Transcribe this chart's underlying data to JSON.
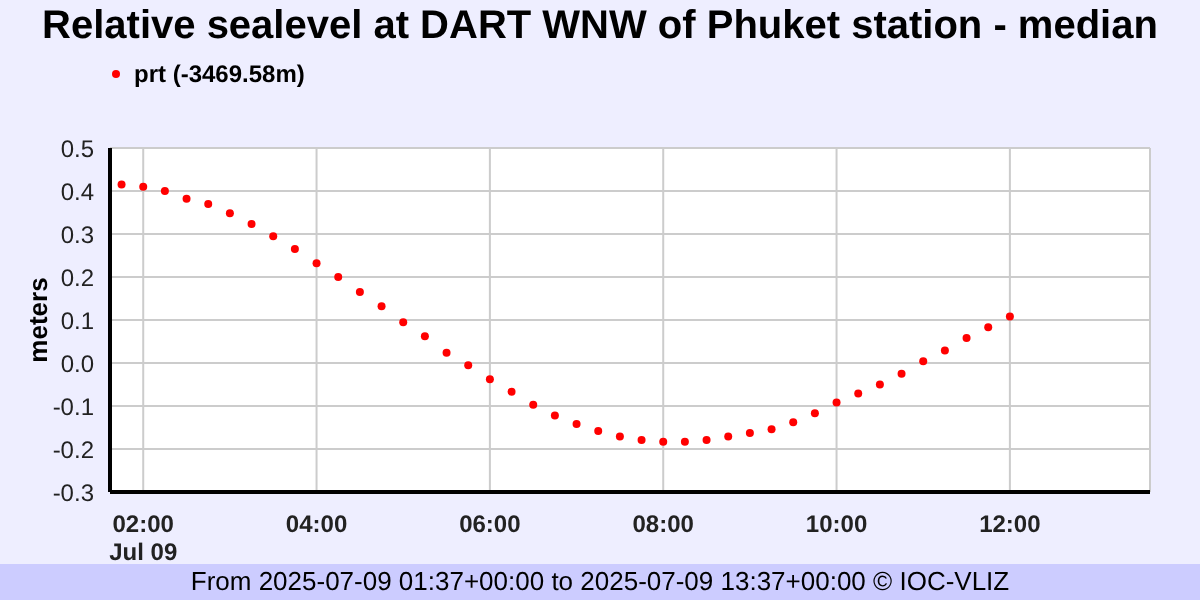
{
  "chart_data": {
    "type": "scatter",
    "title": "Relative sealevel at DART WNW of Phuket station - median",
    "ylabel": "meters",
    "annotations": [
      "From 2025-07-09 01:37+00:00 to 2025-07-09 13:37+00:00 © IOC-VLIZ"
    ],
    "x": [
      "2025-07-09T01:45",
      "2025-07-09T02:00",
      "2025-07-09T02:15",
      "2025-07-09T02:30",
      "2025-07-09T02:45",
      "2025-07-09T03:00",
      "2025-07-09T03:15",
      "2025-07-09T03:30",
      "2025-07-09T03:45",
      "2025-07-09T04:00",
      "2025-07-09T04:15",
      "2025-07-09T04:30",
      "2025-07-09T04:45",
      "2025-07-09T05:00",
      "2025-07-09T05:15",
      "2025-07-09T05:30",
      "2025-07-09T05:45",
      "2025-07-09T06:00",
      "2025-07-09T06:15",
      "2025-07-09T06:30",
      "2025-07-09T06:45",
      "2025-07-09T07:00",
      "2025-07-09T07:15",
      "2025-07-09T07:30",
      "2025-07-09T07:45",
      "2025-07-09T08:00",
      "2025-07-09T08:15",
      "2025-07-09T08:30",
      "2025-07-09T08:45",
      "2025-07-09T09:00",
      "2025-07-09T09:15",
      "2025-07-09T09:30",
      "2025-07-09T09:45",
      "2025-07-09T10:00",
      "2025-07-09T10:15",
      "2025-07-09T10:30",
      "2025-07-09T10:45",
      "2025-07-09T11:00",
      "2025-07-09T11:15",
      "2025-07-09T11:30",
      "2025-07-09T11:45",
      "2025-07-09T12:00"
    ],
    "series": [
      {
        "name": "prt (-3469.58m)",
        "color": "#ff0000",
        "values": [
          0.415,
          0.41,
          0.4,
          0.382,
          0.37,
          0.348,
          0.323,
          0.295,
          0.265,
          0.232,
          0.2,
          0.165,
          0.132,
          0.095,
          0.062,
          0.024,
          -0.005,
          -0.038,
          -0.067,
          -0.097,
          -0.122,
          -0.142,
          -0.158,
          -0.171,
          -0.179,
          -0.183,
          -0.183,
          -0.179,
          -0.171,
          -0.163,
          -0.154,
          -0.138,
          -0.117,
          -0.092,
          -0.071,
          -0.05,
          -0.025,
          0.004,
          0.029,
          0.058,
          0.083,
          0.108
        ]
      }
    ],
    "xlim": [
      "2025-07-09T01:37",
      "2025-07-09T13:37"
    ],
    "xticks": [
      {
        "value": "2025-07-09T02:00",
        "label": "02:00\nJul 09"
      },
      {
        "value": "2025-07-09T04:00",
        "label": "04:00"
      },
      {
        "value": "2025-07-09T06:00",
        "label": "06:00"
      },
      {
        "value": "2025-07-09T08:00",
        "label": "08:00"
      },
      {
        "value": "2025-07-09T10:00",
        "label": "10:00"
      },
      {
        "value": "2025-07-09T12:00",
        "label": "12:00"
      }
    ],
    "ylim": [
      -0.3,
      0.5
    ],
    "yticks": [
      -0.3,
      -0.2,
      -0.1,
      {
        "value": 0,
        "label": "0.0"
      },
      0.1,
      0.2,
      0.3,
      0.4,
      0.5
    ],
    "grid": true,
    "legend": "top left",
    "marker": "circle"
  }
}
